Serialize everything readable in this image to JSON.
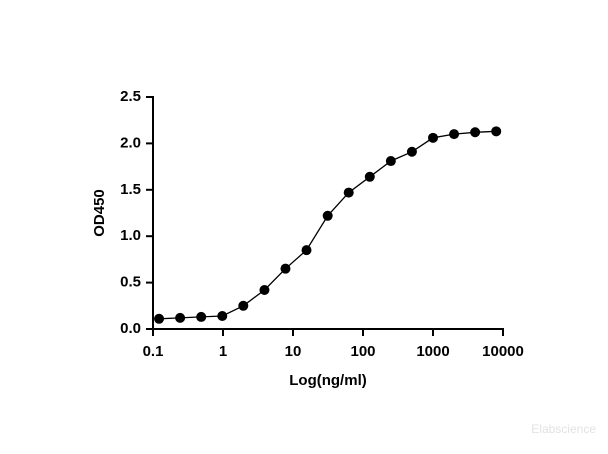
{
  "chart_data": {
    "type": "scatter-line",
    "x_label": "Log(ng/ml)",
    "y_label": "OD450",
    "x": [
      0.122,
      0.244,
      0.488,
      0.977,
      1.95,
      3.91,
      7.81,
      15.6,
      31.3,
      62.5,
      125,
      250,
      500,
      1000,
      2000,
      4000,
      8000
    ],
    "values": [
      0.11,
      0.12,
      0.13,
      0.14,
      0.25,
      0.42,
      0.65,
      0.85,
      1.22,
      1.47,
      1.64,
      1.81,
      1.91,
      2.06,
      2.1,
      2.12,
      2.13
    ],
    "color": "#000000",
    "xlog": true,
    "xlim": [
      0.1,
      10000
    ],
    "xticks": [
      0.1,
      1,
      10,
      100,
      1000,
      10000
    ],
    "ylim": [
      0,
      2.5
    ],
    "yticks": [
      {
        "value": 0,
        "label": "0.0"
      },
      0.5,
      {
        "value": 1,
        "label": "1.0"
      },
      1.5,
      {
        "value": 2,
        "label": "2.0"
      },
      2.5
    ],
    "watermark": "Elabscience"
  }
}
